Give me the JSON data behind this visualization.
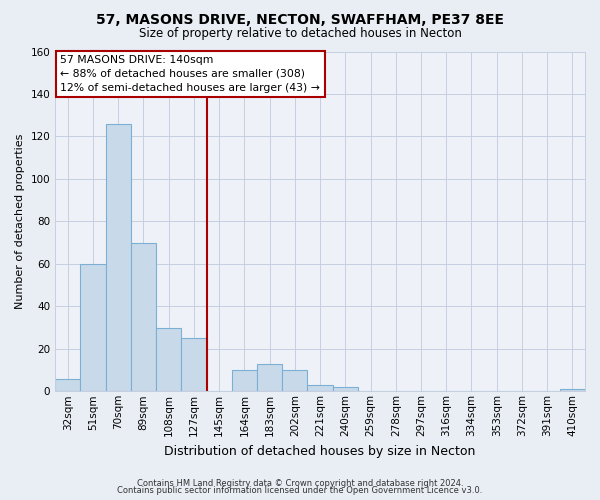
{
  "title": "57, MASONS DRIVE, NECTON, SWAFFHAM, PE37 8EE",
  "subtitle": "Size of property relative to detached houses in Necton",
  "xlabel": "Distribution of detached houses by size in Necton",
  "ylabel": "Number of detached properties",
  "bin_labels": [
    "32sqm",
    "51sqm",
    "70sqm",
    "89sqm",
    "108sqm",
    "127sqm",
    "145sqm",
    "164sqm",
    "183sqm",
    "202sqm",
    "221sqm",
    "240sqm",
    "259sqm",
    "278sqm",
    "297sqm",
    "316sqm",
    "334sqm",
    "353sqm",
    "372sqm",
    "391sqm",
    "410sqm"
  ],
  "bar_values": [
    6,
    60,
    126,
    70,
    30,
    25,
    0,
    10,
    13,
    10,
    3,
    2,
    0,
    0,
    0,
    0,
    0,
    0,
    0,
    0,
    1
  ],
  "bar_color": "#c8daea",
  "bar_edge_color": "#7bafd4",
  "ylim": [
    0,
    160
  ],
  "yticks": [
    0,
    20,
    40,
    60,
    80,
    100,
    120,
    140,
    160
  ],
  "property_line_index": 6,
  "property_line_color": "#aa0000",
  "annotation_title": "57 MASONS DRIVE: 140sqm",
  "annotation_line1": "← 88% of detached houses are smaller (308)",
  "annotation_line2": "12% of semi-detached houses are larger (43) →",
  "footer_line1": "Contains HM Land Registry data © Crown copyright and database right 2024.",
  "footer_line2": "Contains public sector information licensed under the Open Government Licence v3.0.",
  "background_color": "#e8eef4",
  "plot_bg_color": "#eef2f8",
  "grid_color": "#c5cfe0",
  "title_fontsize": 10,
  "subtitle_fontsize": 8.5,
  "xlabel_fontsize": 9,
  "ylabel_fontsize": 8,
  "tick_fontsize": 7.5
}
